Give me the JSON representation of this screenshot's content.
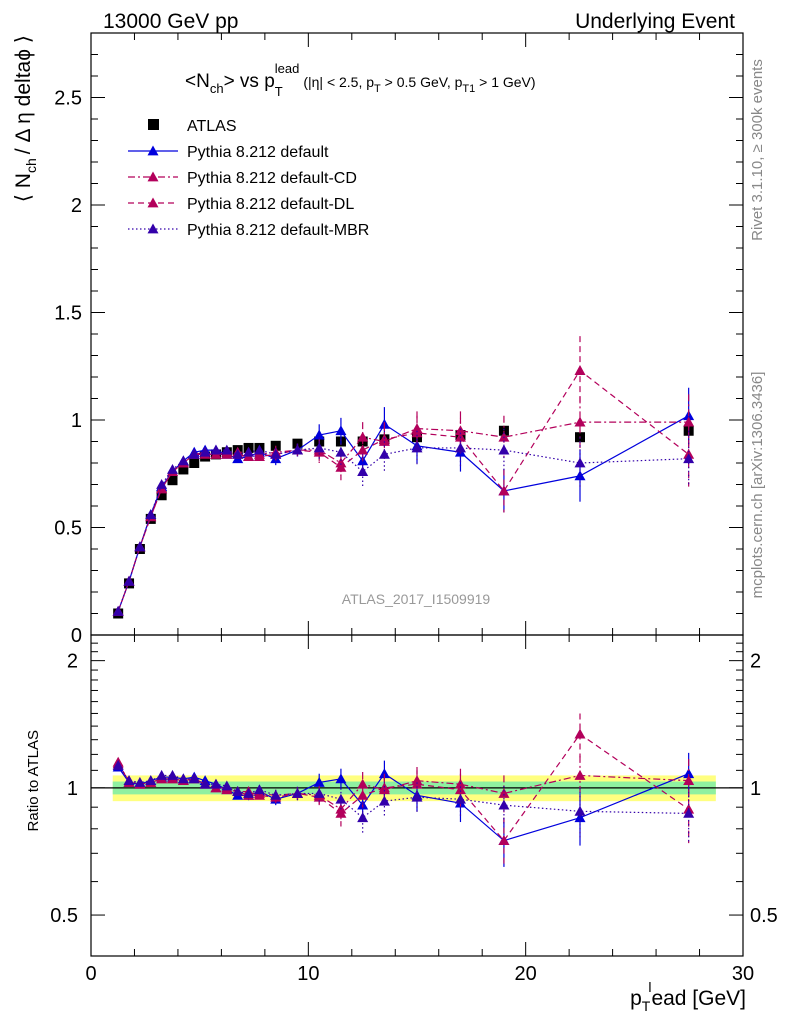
{
  "header": {
    "left": "13000 GeV pp",
    "right": "Underlying Event"
  },
  "plot_title": {
    "main_a": "<N",
    "main_sub": "ch",
    "main_b": "> vs p",
    "main_sub_T": "T",
    "main_sup": "lead",
    "cuts_a": "(|η| < 2.5, p",
    "cuts_sub1": "T",
    "cuts_b": " > 0.5 GeV, p",
    "cuts_sub2": "T1",
    "cuts_c": " > 1 GeV)"
  },
  "side_labels": {
    "rivet": "Rivet 3.1.10, ≥ 300k events",
    "mcplots": "mcplots.cern.ch [arXiv:1306.3436]"
  },
  "watermark": "ATLAS_2017_I1509919",
  "axes": {
    "ylabel_main": "⟨ N",
    "ylabel_sub": "ch",
    "ylabel_rest": "/ Δ η deltaϕ ⟩",
    "ylabel_ratio": "Ratio to ATLAS",
    "xlabel_a": "p",
    "xlabel_sub": "T",
    "xlabel_sup": "l",
    "xlabel_b": "ead [GeV]",
    "main_yticks": [
      "0",
      "0.5",
      "1",
      "1.5",
      "2",
      "2.5"
    ],
    "ratio_yticks": [
      "0.5",
      "1",
      "2"
    ],
    "xticks": [
      "0",
      "10",
      "20",
      "30"
    ]
  },
  "chart_data": {
    "type": "scatter",
    "xlim": [
      0,
      30
    ],
    "main_ylim": [
      0,
      2.8
    ],
    "ratio_ylim": [
      0.4,
      2.3
    ],
    "ratio_log_scale": true,
    "x": [
      1.25,
      1.75,
      2.25,
      2.75,
      3.25,
      3.75,
      4.25,
      4.75,
      5.25,
      5.75,
      6.25,
      6.75,
      7.25,
      7.75,
      8.5,
      9.5,
      10.5,
      11.5,
      12.5,
      13.5,
      15,
      17,
      19,
      22.5,
      27.5
    ],
    "legend_position": "top-left",
    "series": [
      {
        "name": "ATLAS",
        "color": "#000000",
        "marker": "square",
        "values": [
          0.1,
          0.24,
          0.4,
          0.54,
          0.65,
          0.72,
          0.77,
          0.8,
          0.83,
          0.84,
          0.85,
          0.86,
          0.87,
          0.87,
          0.88,
          0.89,
          0.9,
          0.9,
          0.9,
          0.91,
          0.92,
          0.93,
          0.95,
          0.92,
          0.95
        ]
      },
      {
        "name": "Pythia 8.212 default",
        "color": "#0000dd",
        "marker": "triangle",
        "dash": "",
        "values": [
          0.11,
          0.25,
          0.41,
          0.56,
          0.69,
          0.76,
          0.81,
          0.85,
          0.86,
          0.86,
          0.84,
          0.82,
          0.83,
          0.85,
          0.82,
          0.86,
          0.93,
          0.95,
          0.81,
          0.98,
          0.88,
          0.85,
          0.67,
          0.74,
          1.02
        ],
        "errors": [
          0.005,
          0.005,
          0.005,
          0.01,
          0.01,
          0.01,
          0.01,
          0.01,
          0.01,
          0.01,
          0.015,
          0.015,
          0.02,
          0.02,
          0.03,
          0.03,
          0.05,
          0.06,
          0.07,
          0.08,
          0.08,
          0.09,
          0.1,
          0.12,
          0.13
        ],
        "ratio": [
          1.12,
          1.03,
          1.02,
          1.04,
          1.06,
          1.06,
          1.05,
          1.06,
          1.04,
          1.02,
          0.99,
          0.96,
          0.96,
          0.98,
          0.94,
          0.97,
          1.03,
          1.05,
          0.91,
          1.08,
          0.96,
          0.92,
          0.75,
          0.85,
          1.08
        ],
        "ratio_errors": [
          0.01,
          0.01,
          0.01,
          0.01,
          0.01,
          0.01,
          0.01,
          0.01,
          0.015,
          0.015,
          0.02,
          0.02,
          0.025,
          0.025,
          0.03,
          0.035,
          0.05,
          0.06,
          0.07,
          0.08,
          0.08,
          0.09,
          0.1,
          0.12,
          0.13
        ]
      },
      {
        "name": "Pythia 8.212 default-CD",
        "color": "#b3005b",
        "marker": "triangle",
        "dash": "7,3,2,3",
        "values": [
          0.11,
          0.25,
          0.41,
          0.55,
          0.68,
          0.76,
          0.8,
          0.84,
          0.85,
          0.84,
          0.85,
          0.84,
          0.83,
          0.84,
          0.85,
          0.86,
          0.86,
          0.8,
          0.92,
          0.9,
          0.96,
          0.95,
          0.92,
          0.99,
          0.99
        ],
        "errors": [
          0.005,
          0.005,
          0.005,
          0.01,
          0.01,
          0.01,
          0.01,
          0.01,
          0.01,
          0.01,
          0.015,
          0.015,
          0.02,
          0.02,
          0.03,
          0.03,
          0.05,
          0.06,
          0.07,
          0.08,
          0.08,
          0.09,
          0.1,
          0.12,
          0.13
        ],
        "ratio": [
          1.14,
          1.04,
          1.02,
          1.03,
          1.05,
          1.05,
          1.04,
          1.05,
          1.02,
          1.0,
          1.0,
          0.98,
          0.96,
          0.97,
          0.96,
          0.97,
          0.96,
          0.89,
          1.02,
          0.99,
          1.04,
          1.02,
          0.97,
          1.07,
          1.04
        ],
        "ratio_errors": [
          0.01,
          0.01,
          0.01,
          0.01,
          0.01,
          0.01,
          0.01,
          0.01,
          0.015,
          0.015,
          0.02,
          0.02,
          0.025,
          0.025,
          0.03,
          0.035,
          0.05,
          0.06,
          0.07,
          0.08,
          0.08,
          0.09,
          0.1,
          0.12,
          0.13
        ]
      },
      {
        "name": "Pythia 8.212 default-DL",
        "color": "#b3005b",
        "marker": "triangle",
        "dash": "6,4",
        "values": [
          0.11,
          0.25,
          0.41,
          0.55,
          0.68,
          0.76,
          0.8,
          0.84,
          0.84,
          0.84,
          0.84,
          0.85,
          0.85,
          0.83,
          0.84,
          0.86,
          0.85,
          0.78,
          0.86,
          0.91,
          0.94,
          0.92,
          0.67,
          1.23,
          0.84
        ],
        "errors": [
          0.005,
          0.005,
          0.005,
          0.01,
          0.01,
          0.01,
          0.01,
          0.01,
          0.01,
          0.01,
          0.015,
          0.015,
          0.02,
          0.02,
          0.03,
          0.03,
          0.05,
          0.06,
          0.07,
          0.08,
          0.08,
          0.09,
          0.1,
          0.16,
          0.15
        ],
        "ratio": [
          1.15,
          1.03,
          1.02,
          1.03,
          1.05,
          1.05,
          1.04,
          1.05,
          1.02,
          1.0,
          0.99,
          0.98,
          0.98,
          0.96,
          0.95,
          0.97,
          0.95,
          0.87,
          0.96,
          1.0,
          1.02,
          0.99,
          0.75,
          1.34,
          0.89
        ],
        "ratio_errors": [
          0.01,
          0.01,
          0.01,
          0.01,
          0.01,
          0.01,
          0.01,
          0.01,
          0.015,
          0.015,
          0.02,
          0.02,
          0.025,
          0.025,
          0.03,
          0.035,
          0.05,
          0.06,
          0.07,
          0.08,
          0.08,
          0.09,
          0.1,
          0.16,
          0.15
        ]
      },
      {
        "name": "Pythia 8.212 default-MBR",
        "color": "#3300aa",
        "marker": "triangle",
        "dash": "1.5,2.5",
        "values": [
          0.11,
          0.25,
          0.41,
          0.56,
          0.7,
          0.77,
          0.81,
          0.84,
          0.85,
          0.86,
          0.86,
          0.84,
          0.85,
          0.86,
          0.84,
          0.86,
          0.87,
          0.85,
          0.76,
          0.84,
          0.87,
          0.87,
          0.86,
          0.8,
          0.82
        ],
        "errors": [
          0.005,
          0.005,
          0.005,
          0.01,
          0.01,
          0.01,
          0.01,
          0.01,
          0.01,
          0.01,
          0.015,
          0.015,
          0.02,
          0.02,
          0.03,
          0.03,
          0.05,
          0.06,
          0.07,
          0.08,
          0.08,
          0.09,
          0.1,
          0.12,
          0.13
        ],
        "ratio": [
          1.13,
          1.04,
          1.03,
          1.04,
          1.07,
          1.07,
          1.05,
          1.05,
          1.02,
          1.02,
          1.01,
          0.98,
          0.97,
          0.99,
          0.96,
          0.97,
          0.97,
          0.94,
          0.85,
          0.93,
          0.95,
          0.94,
          0.91,
          0.88,
          0.87
        ],
        "ratio_errors": [
          0.01,
          0.01,
          0.01,
          0.01,
          0.01,
          0.01,
          0.01,
          0.01,
          0.015,
          0.015,
          0.02,
          0.02,
          0.025,
          0.025,
          0.03,
          0.035,
          0.05,
          0.06,
          0.07,
          0.08,
          0.08,
          0.09,
          0.1,
          0.12,
          0.13
        ]
      }
    ],
    "atlas_ratio_band_yellow": 0.07,
    "atlas_ratio_band_green": 0.035
  }
}
